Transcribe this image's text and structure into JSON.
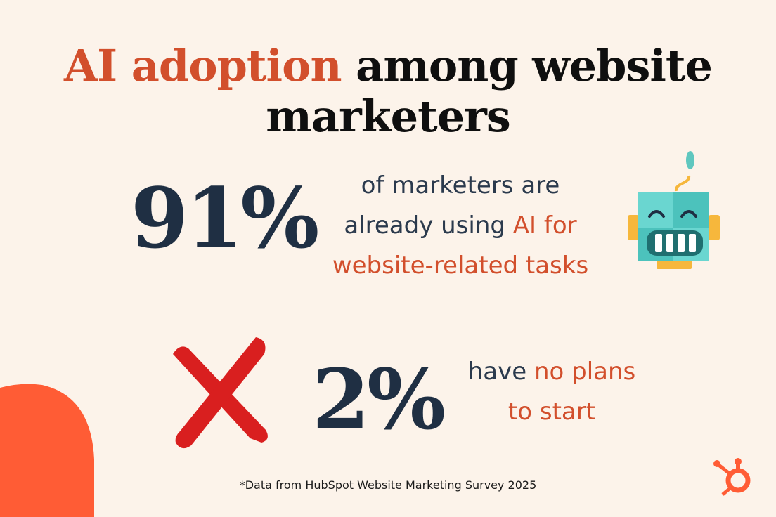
{
  "title": {
    "accent": "AI adoption",
    "rest": "among website marketers"
  },
  "stat1": {
    "value": "91%",
    "line1": "of marketers are",
    "line2_plain": "already using ",
    "line2_accent": "AI for",
    "line3_accent": "website-related tasks"
  },
  "stat2": {
    "value": "2%",
    "line1_plain": "have ",
    "line1_accent": "no plans",
    "line2_accent": "to start"
  },
  "footnote": "*Data from HubSpot Website Marketing Survey 2025",
  "icons": {
    "robot": "robot-icon",
    "cross": "x-mark-icon",
    "logo": "hubspot-logo"
  },
  "colors": {
    "background": "#fcf3ea",
    "accent": "#d24f2c",
    "navy": "#1f2f43",
    "blob": "#ff5c35"
  }
}
